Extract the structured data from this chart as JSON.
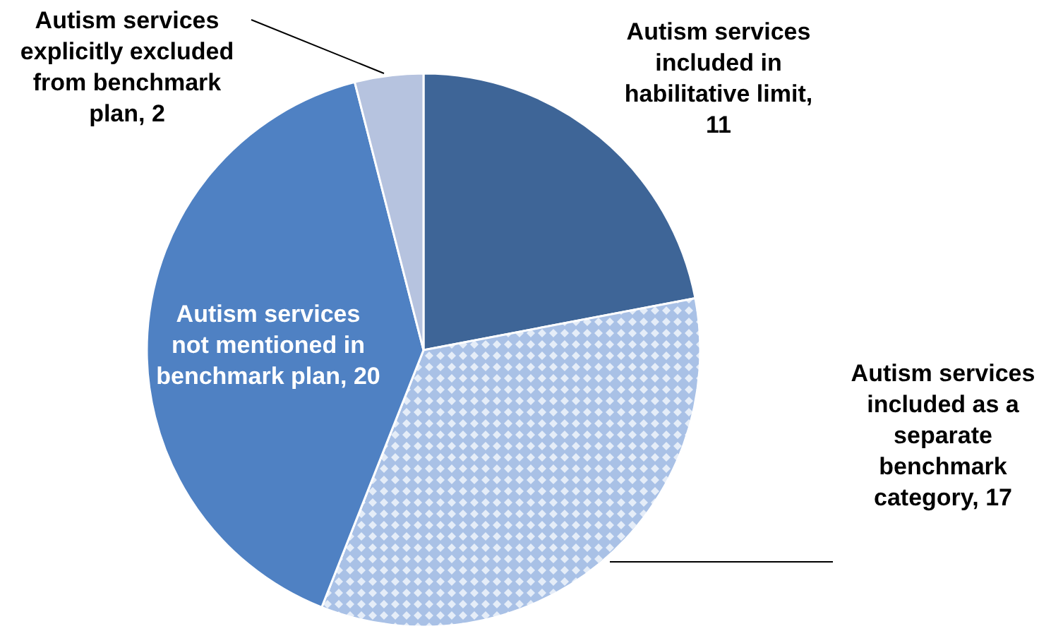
{
  "chart_data": {
    "type": "pie",
    "categories": [
      "Autism services included in habilitative limit",
      "Autism services included as a separate benchmark category",
      "Autism services not mentioned in benchmark plan",
      "Autism services explicitly excluded from benchmark plan"
    ],
    "values": [
      11,
      17,
      20,
      2
    ],
    "value_labels": [
      ", 11",
      ", 17",
      ", 20",
      ", 2"
    ],
    "colors": [
      "#3e6597",
      "#a9c1e6",
      "#4f81c3",
      "#b6c3df"
    ]
  }
}
